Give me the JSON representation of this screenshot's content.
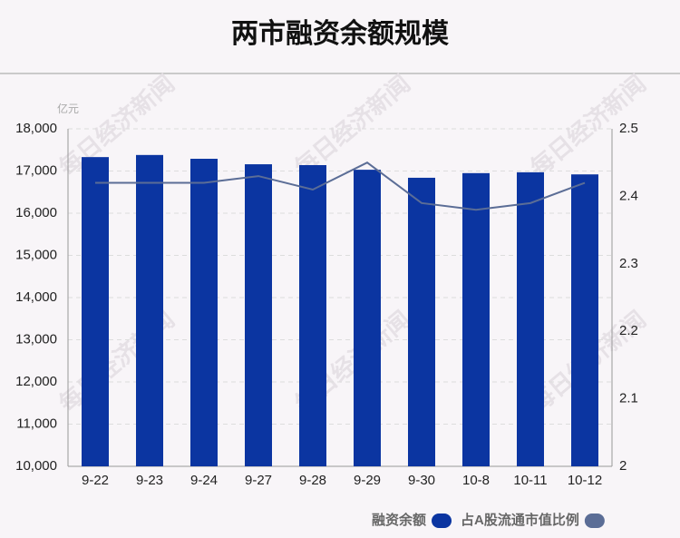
{
  "chart_data": {
    "type": "bar-line",
    "title": "两市融资余额规模",
    "unit_label": "亿元",
    "watermark": "每日经济新闻",
    "categories": [
      "9-22",
      "9-23",
      "9-24",
      "9-27",
      "9-28",
      "9-29",
      "9-30",
      "10-8",
      "10-11",
      "10-12"
    ],
    "series": [
      {
        "name": "融资余额",
        "color": "#0b35a1",
        "type": "bar",
        "values": [
          17330,
          17380,
          17290,
          17160,
          17140,
          17030,
          16840,
          16950,
          16970,
          16920
        ]
      },
      {
        "name": "占A股流通市值比例",
        "color": "#5b6d96",
        "type": "line",
        "axis": "y2",
        "values": [
          2.42,
          2.42,
          2.42,
          2.43,
          2.41,
          2.45,
          2.39,
          2.38,
          2.39,
          2.42
        ]
      }
    ],
    "ylim": [
      10000,
      18000
    ],
    "yticks": [
      {
        "value": 10000,
        "label": "10,000"
      },
      {
        "value": 11000,
        "label": "11,000"
      },
      {
        "value": 12000,
        "label": "12,000"
      },
      {
        "value": 13000,
        "label": "13,000"
      },
      {
        "value": 14000,
        "label": "14,000"
      },
      {
        "value": 15000,
        "label": "15,000"
      },
      {
        "value": 16000,
        "label": "16,000"
      },
      {
        "value": 17000,
        "label": "17,000"
      },
      {
        "value": 18000,
        "label": "18,000"
      }
    ],
    "y2lim": [
      2,
      2.5
    ],
    "y2ticks": [
      2,
      2.1,
      2.2,
      2.3,
      2.4,
      2.5
    ],
    "grid": true
  }
}
